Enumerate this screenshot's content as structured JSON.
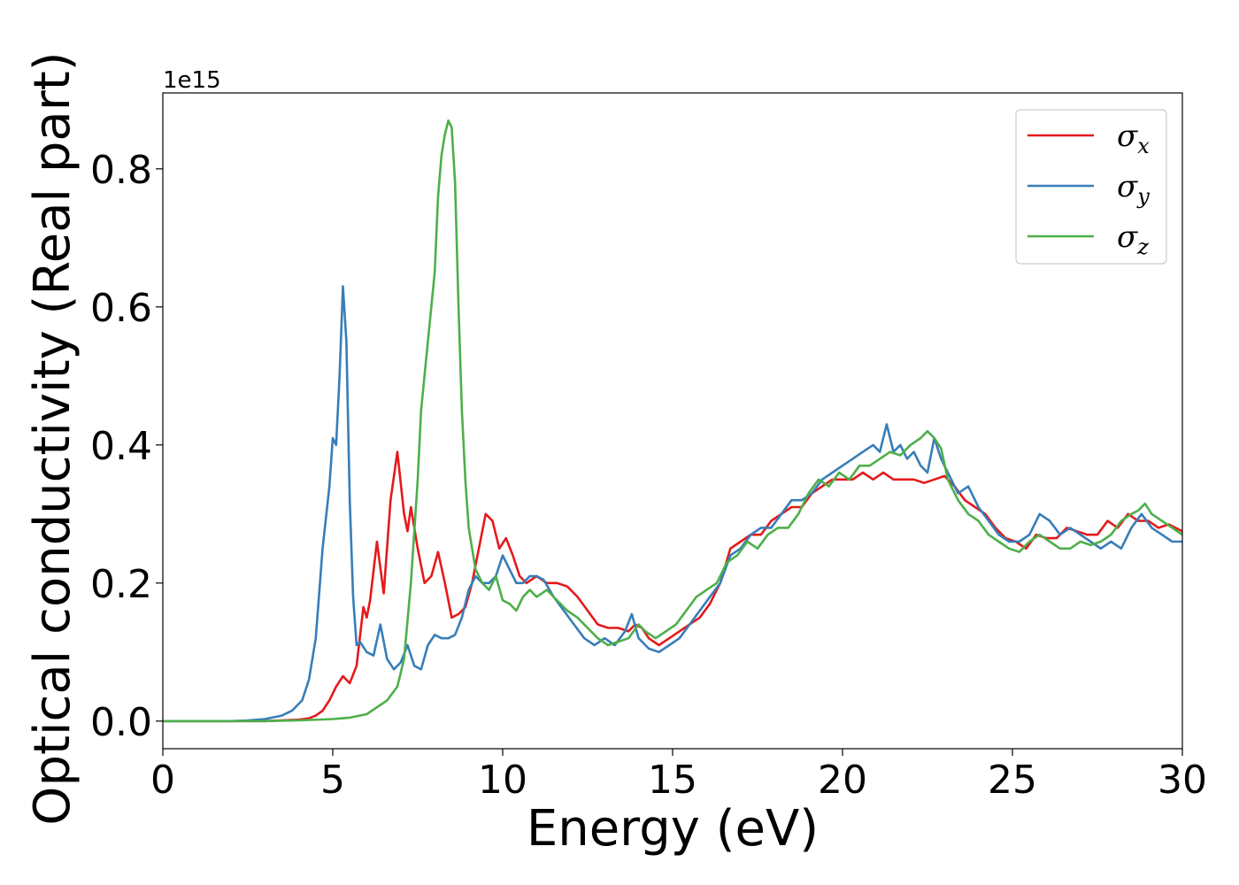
{
  "chart_data": {
    "type": "line",
    "xlabel": "Energy (eV)",
    "ylabel": "Optical conductivity (Real part)",
    "y_offset_text": "1e15",
    "y_scale": 1000000000000000.0,
    "xlim": [
      0,
      30
    ],
    "ylim": [
      -0.04,
      0.91
    ],
    "xticks": [
      0,
      5,
      10,
      15,
      20,
      25,
      30
    ],
    "xtick_labels": [
      "0",
      "5",
      "10",
      "15",
      "20",
      "25",
      "30"
    ],
    "yticks": [
      0.0,
      0.2,
      0.4,
      0.6,
      0.8
    ],
    "ytick_labels": [
      "0.0",
      "0.2",
      "0.4",
      "0.6",
      "0.8"
    ],
    "grid": false,
    "legend_position": "top-right",
    "series": [
      {
        "name": "σx",
        "symbol": "σ",
        "subscript": "x",
        "color": "#e41a1c",
        "x": [
          0,
          1,
          2,
          3,
          3.5,
          4,
          4.3,
          4.5,
          4.7,
          4.9,
          5.1,
          5.3,
          5.5,
          5.7,
          5.9,
          6.0,
          6.1,
          6.3,
          6.5,
          6.7,
          6.9,
          7.1,
          7.2,
          7.3,
          7.5,
          7.7,
          7.9,
          8.1,
          8.3,
          8.5,
          8.7,
          8.9,
          9.1,
          9.3,
          9.5,
          9.7,
          9.9,
          10.1,
          10.3,
          10.5,
          10.7,
          11.0,
          11.3,
          11.6,
          11.9,
          12.2,
          12.5,
          12.8,
          13.1,
          13.4,
          13.7,
          13.9,
          14.1,
          14.3,
          14.6,
          14.9,
          15.2,
          15.5,
          15.8,
          16.1,
          16.4,
          16.7,
          17.0,
          17.3,
          17.6,
          17.9,
          18.2,
          18.5,
          18.8,
          19.1,
          19.4,
          19.7,
          20.0,
          20.3,
          20.6,
          20.9,
          21.2,
          21.5,
          21.8,
          22.1,
          22.4,
          22.7,
          23.0,
          23.3,
          23.6,
          23.9,
          24.2,
          24.5,
          24.8,
          25.1,
          25.4,
          25.7,
          26.0,
          26.3,
          26.6,
          26.9,
          27.2,
          27.5,
          27.8,
          28.1,
          28.4,
          28.7,
          29.0,
          29.3,
          29.6,
          30.0
        ],
        "y": [
          0,
          0,
          0,
          0,
          0.001,
          0.002,
          0.004,
          0.008,
          0.015,
          0.03,
          0.05,
          0.065,
          0.055,
          0.08,
          0.165,
          0.15,
          0.175,
          0.26,
          0.185,
          0.32,
          0.39,
          0.3,
          0.275,
          0.31,
          0.25,
          0.2,
          0.21,
          0.245,
          0.2,
          0.15,
          0.155,
          0.165,
          0.2,
          0.25,
          0.3,
          0.29,
          0.25,
          0.265,
          0.24,
          0.21,
          0.2,
          0.21,
          0.2,
          0.2,
          0.195,
          0.18,
          0.16,
          0.14,
          0.135,
          0.135,
          0.13,
          0.14,
          0.135,
          0.12,
          0.11,
          0.12,
          0.13,
          0.14,
          0.15,
          0.17,
          0.2,
          0.25,
          0.26,
          0.27,
          0.27,
          0.29,
          0.3,
          0.31,
          0.31,
          0.33,
          0.34,
          0.35,
          0.35,
          0.35,
          0.36,
          0.35,
          0.36,
          0.35,
          0.35,
          0.35,
          0.345,
          0.35,
          0.355,
          0.34,
          0.32,
          0.31,
          0.3,
          0.28,
          0.265,
          0.26,
          0.25,
          0.27,
          0.265,
          0.265,
          0.28,
          0.275,
          0.27,
          0.27,
          0.29,
          0.28,
          0.3,
          0.29,
          0.29,
          0.28,
          0.285,
          0.275
        ]
      },
      {
        "name": "σy",
        "symbol": "σ",
        "subscript": "y",
        "color": "#377eb8",
        "x": [
          0,
          1,
          2,
          2.5,
          3,
          3.5,
          3.8,
          4.1,
          4.3,
          4.5,
          4.7,
          4.9,
          5.0,
          5.1,
          5.2,
          5.3,
          5.4,
          5.5,
          5.6,
          5.7,
          5.8,
          6.0,
          6.2,
          6.4,
          6.6,
          6.8,
          7.0,
          7.2,
          7.4,
          7.6,
          7.8,
          8.0,
          8.2,
          8.4,
          8.6,
          8.8,
          9.0,
          9.2,
          9.4,
          9.6,
          9.8,
          10.0,
          10.2,
          10.4,
          10.6,
          10.8,
          11.0,
          11.2,
          11.5,
          11.8,
          12.1,
          12.4,
          12.7,
          13.0,
          13.3,
          13.6,
          13.8,
          14.0,
          14.3,
          14.6,
          14.9,
          15.2,
          15.5,
          15.8,
          16.1,
          16.4,
          16.7,
          17.0,
          17.3,
          17.6,
          17.9,
          18.2,
          18.5,
          18.8,
          19.1,
          19.4,
          19.7,
          20.0,
          20.3,
          20.6,
          20.9,
          21.1,
          21.3,
          21.5,
          21.7,
          21.9,
          22.1,
          22.3,
          22.5,
          22.7,
          22.9,
          23.1,
          23.4,
          23.7,
          24.0,
          24.3,
          24.6,
          24.9,
          25.2,
          25.5,
          25.8,
          26.1,
          26.4,
          26.7,
          27.0,
          27.3,
          27.6,
          27.9,
          28.2,
          28.5,
          28.8,
          29.1,
          29.4,
          29.7,
          30.0
        ],
        "y": [
          0,
          0,
          0,
          0.001,
          0.003,
          0.008,
          0.015,
          0.03,
          0.06,
          0.12,
          0.25,
          0.34,
          0.41,
          0.4,
          0.5,
          0.63,
          0.55,
          0.32,
          0.18,
          0.11,
          0.115,
          0.1,
          0.095,
          0.14,
          0.09,
          0.075,
          0.085,
          0.11,
          0.08,
          0.075,
          0.11,
          0.125,
          0.12,
          0.12,
          0.125,
          0.15,
          0.19,
          0.21,
          0.2,
          0.2,
          0.21,
          0.24,
          0.22,
          0.2,
          0.2,
          0.21,
          0.21,
          0.205,
          0.18,
          0.16,
          0.14,
          0.12,
          0.11,
          0.12,
          0.11,
          0.13,
          0.155,
          0.12,
          0.105,
          0.1,
          0.11,
          0.12,
          0.14,
          0.16,
          0.18,
          0.2,
          0.24,
          0.25,
          0.27,
          0.28,
          0.28,
          0.3,
          0.32,
          0.32,
          0.33,
          0.35,
          0.36,
          0.37,
          0.38,
          0.39,
          0.4,
          0.39,
          0.43,
          0.39,
          0.4,
          0.38,
          0.39,
          0.37,
          0.36,
          0.41,
          0.38,
          0.36,
          0.33,
          0.34,
          0.31,
          0.29,
          0.27,
          0.26,
          0.26,
          0.27,
          0.3,
          0.29,
          0.27,
          0.28,
          0.27,
          0.26,
          0.25,
          0.26,
          0.25,
          0.28,
          0.3,
          0.28,
          0.27,
          0.26,
          0.26
        ]
      },
      {
        "name": "σz",
        "symbol": "σ",
        "subscript": "z",
        "color": "#4daf4a",
        "x": [
          0,
          1,
          2,
          3,
          4,
          5,
          5.5,
          6.0,
          6.3,
          6.6,
          6.9,
          7.1,
          7.3,
          7.5,
          7.6,
          7.8,
          8.0,
          8.1,
          8.2,
          8.3,
          8.4,
          8.5,
          8.6,
          8.7,
          8.8,
          8.9,
          9.0,
          9.2,
          9.4,
          9.6,
          9.8,
          10.0,
          10.2,
          10.4,
          10.6,
          10.8,
          11.0,
          11.3,
          11.6,
          11.9,
          12.2,
          12.5,
          12.8,
          13.1,
          13.4,
          13.7,
          14.0,
          14.2,
          14.5,
          14.8,
          15.1,
          15.4,
          15.7,
          16.0,
          16.3,
          16.6,
          16.9,
          17.2,
          17.5,
          17.8,
          18.1,
          18.4,
          18.7,
          19.0,
          19.3,
          19.6,
          19.9,
          20.2,
          20.5,
          20.8,
          21.1,
          21.4,
          21.7,
          22.0,
          22.3,
          22.5,
          22.7,
          22.9,
          23.1,
          23.4,
          23.7,
          24.0,
          24.3,
          24.6,
          24.9,
          25.2,
          25.5,
          25.8,
          26.1,
          26.4,
          26.7,
          27.0,
          27.3,
          27.6,
          27.9,
          28.2,
          28.5,
          28.7,
          28.9,
          29.1,
          29.4,
          29.7,
          30.0
        ],
        "y": [
          0,
          0,
          0,
          0,
          0.001,
          0.003,
          0.005,
          0.01,
          0.02,
          0.03,
          0.05,
          0.09,
          0.2,
          0.35,
          0.45,
          0.55,
          0.65,
          0.76,
          0.82,
          0.85,
          0.87,
          0.86,
          0.78,
          0.6,
          0.45,
          0.35,
          0.28,
          0.22,
          0.2,
          0.19,
          0.21,
          0.175,
          0.17,
          0.16,
          0.18,
          0.19,
          0.18,
          0.19,
          0.175,
          0.16,
          0.15,
          0.135,
          0.12,
          0.11,
          0.115,
          0.12,
          0.14,
          0.13,
          0.12,
          0.13,
          0.14,
          0.16,
          0.18,
          0.19,
          0.2,
          0.23,
          0.24,
          0.26,
          0.25,
          0.27,
          0.28,
          0.28,
          0.3,
          0.33,
          0.35,
          0.34,
          0.36,
          0.35,
          0.37,
          0.37,
          0.38,
          0.39,
          0.385,
          0.4,
          0.41,
          0.42,
          0.41,
          0.395,
          0.35,
          0.32,
          0.3,
          0.29,
          0.27,
          0.26,
          0.25,
          0.245,
          0.26,
          0.27,
          0.26,
          0.25,
          0.25,
          0.26,
          0.255,
          0.26,
          0.27,
          0.29,
          0.3,
          0.305,
          0.315,
          0.3,
          0.29,
          0.28,
          0.27
        ]
      }
    ]
  }
}
